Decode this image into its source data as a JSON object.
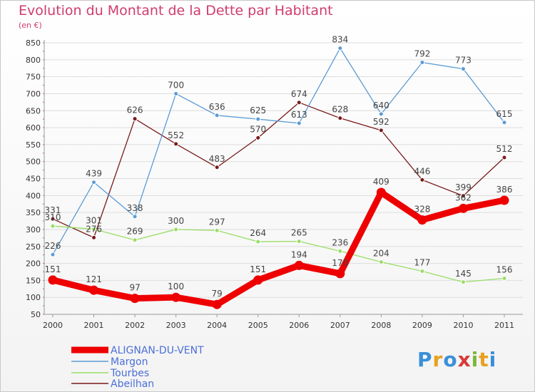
{
  "title": "Evolution du Montant de la Dette par Habitant",
  "unit": "(en €)",
  "logo_text": "Proxiti",
  "colors": {
    "title": "#cf3c6e",
    "axis_text": "#333333",
    "grid": "#dddddd",
    "legend_text": "#4a6fd8"
  },
  "chart_data": {
    "type": "line",
    "title": "Evolution du Montant de la Dette par Habitant",
    "ylabel": "(en €)",
    "xlabel": "",
    "x": [
      "2000",
      "2001",
      "2002",
      "2003",
      "2004",
      "2005",
      "2006",
      "2007",
      "2008",
      "2009",
      "2010",
      "2011"
    ],
    "ylim": [
      50,
      850
    ],
    "yticks": [
      50,
      100,
      150,
      200,
      250,
      300,
      350,
      400,
      450,
      500,
      550,
      600,
      650,
      700,
      750,
      800,
      850
    ],
    "grid": true,
    "legend_position": "bottom-left",
    "series": [
      {
        "name": "ALIGNAN-DU-VENT",
        "color": "#ee0000",
        "values": [
          151,
          121,
          97,
          100,
          79,
          151,
          194,
          170,
          409,
          328,
          362,
          386
        ]
      },
      {
        "name": "Margon",
        "color": "#5b9bd5",
        "values": [
          226,
          439,
          338,
          700,
          636,
          625,
          613,
          834,
          640,
          792,
          773,
          615
        ]
      },
      {
        "name": "Tourbes",
        "color": "#99dd66",
        "values": [
          310,
          301,
          269,
          300,
          297,
          264,
          265,
          236,
          204,
          177,
          145,
          156
        ]
      },
      {
        "name": "Abeilhan",
        "color": "#7a1a1a",
        "values": [
          331,
          276,
          626,
          552,
          483,
          570,
          674,
          628,
          592,
          446,
          399,
          512
        ]
      }
    ]
  }
}
